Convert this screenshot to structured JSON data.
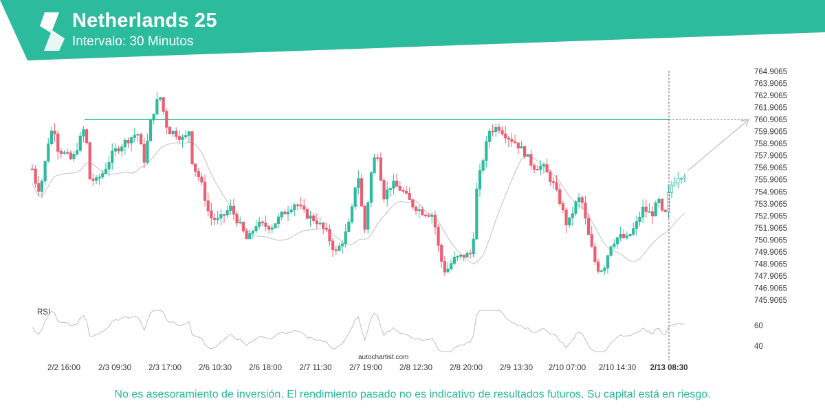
{
  "header": {
    "instrument": "Netherlands 25",
    "interval": "Intervalo: 30 Minutos",
    "bg_color": "#2cbb9c"
  },
  "watermark": "autochartist.com",
  "disclaimer": "No es asesoramiento de inversión. El rendimiento pasado no es indicativo de resultados futuros. Su capital está en riesgo.",
  "chart_data": {
    "type": "candlestick",
    "price_axis": {
      "ticks": [
        "764.9065",
        "763.9065",
        "762.9065",
        "761.9065",
        "760.9065",
        "759.9065",
        "758.9065",
        "757.9065",
        "756.9065",
        "755.9065",
        "754.9065",
        "753.9065",
        "752.9065",
        "751.9065",
        "750.9065",
        "749.9065",
        "748.9065",
        "747.9065",
        "746.9065",
        "745.9065"
      ],
      "range": [
        745.9065,
        764.9065
      ]
    },
    "x_labels": [
      "2/2 16:00",
      "2/3 09:30",
      "2/3 17:00",
      "2/6 10:30",
      "2/6 18:00",
      "2/7 11:30",
      "2/7 19:00",
      "2/8 12:30",
      "2/8 20:00",
      "2/9 13:30",
      "2/10 07:00",
      "2/10 14:30",
      "2/13 08:30"
    ],
    "highlighted_x_label": "2/13 08:30",
    "resistance_level": 760.9065,
    "rsi": {
      "label": "RSI",
      "ticks": [
        "60",
        "40"
      ],
      "range": [
        30,
        70
      ]
    },
    "colors": {
      "up": "#2cbb9c",
      "down": "#ee5c72",
      "resistance": "#2cbb9c",
      "ma": "#c0c0c0",
      "projection": "#bdbdbd"
    },
    "grid": false,
    "candles": []
  }
}
